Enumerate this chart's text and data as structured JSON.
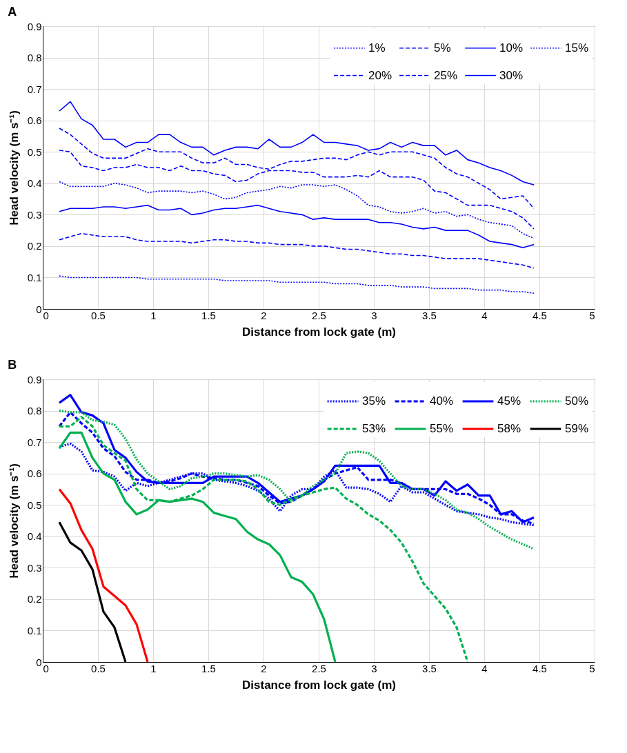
{
  "chart_data": [
    {
      "type": "line",
      "title": "A",
      "xlabel": "Distance from lock gate (m)",
      "ylabel": "Head velocity (m s⁻¹)",
      "xlim": [
        0,
        5
      ],
      "xticks": [
        0,
        0.5,
        1,
        1.5,
        2,
        2.5,
        3,
        3.5,
        4,
        4.5,
        5
      ],
      "ylim": [
        0,
        0.9
      ],
      "yticks": [
        0,
        0.1,
        0.2,
        0.3,
        0.4,
        0.5,
        0.6,
        0.7,
        0.8,
        0.9
      ],
      "grid": true,
      "legend": "top right",
      "x": [
        0.15,
        0.25,
        0.35,
        0.45,
        0.55,
        0.65,
        0.75,
        0.85,
        0.95,
        1.05,
        1.15,
        1.25,
        1.35,
        1.45,
        1.55,
        1.65,
        1.75,
        1.85,
        1.95,
        2.05,
        2.15,
        2.25,
        2.35,
        2.45,
        2.55,
        2.65,
        2.75,
        2.85,
        2.95,
        3.05,
        3.15,
        3.25,
        3.35,
        3.45,
        3.55,
        3.65,
        3.75,
        3.85,
        3.95,
        4.05,
        4.15,
        4.25,
        4.35,
        4.45
      ],
      "series": [
        {
          "name": "1%",
          "color": "#0000ff",
          "line_style": "dotted",
          "values": [
            0.105,
            0.1,
            0.1,
            0.1,
            0.1,
            0.1,
            0.1,
            0.1,
            0.095,
            0.095,
            0.095,
            0.095,
            0.095,
            0.095,
            0.095,
            0.09,
            0.09,
            0.09,
            0.09,
            0.09,
            0.085,
            0.085,
            0.085,
            0.085,
            0.085,
            0.08,
            0.08,
            0.08,
            0.075,
            0.075,
            0.075,
            0.07,
            0.07,
            0.07,
            0.065,
            0.065,
            0.065,
            0.065,
            0.06,
            0.06,
            0.06,
            0.055,
            0.055,
            0.05
          ]
        },
        {
          "name": "5%",
          "color": "#0000ff",
          "line_style": "dashed",
          "values": [
            0.22,
            0.23,
            0.24,
            0.235,
            0.23,
            0.23,
            0.23,
            0.22,
            0.215,
            0.215,
            0.215,
            0.215,
            0.21,
            0.215,
            0.22,
            0.22,
            0.215,
            0.215,
            0.21,
            0.21,
            0.205,
            0.205,
            0.205,
            0.2,
            0.2,
            0.195,
            0.19,
            0.19,
            0.185,
            0.18,
            0.175,
            0.175,
            0.17,
            0.17,
            0.165,
            0.16,
            0.16,
            0.16,
            0.16,
            0.155,
            0.15,
            0.145,
            0.14,
            0.13
          ]
        },
        {
          "name": "10%",
          "color": "#0000ff",
          "line_style": "solid",
          "values": [
            0.31,
            0.32,
            0.32,
            0.32,
            0.325,
            0.325,
            0.32,
            0.325,
            0.33,
            0.315,
            0.315,
            0.32,
            0.3,
            0.305,
            0.315,
            0.32,
            0.32,
            0.325,
            0.33,
            0.32,
            0.31,
            0.305,
            0.3,
            0.285,
            0.29,
            0.285,
            0.285,
            0.285,
            0.285,
            0.275,
            0.275,
            0.27,
            0.26,
            0.255,
            0.26,
            0.25,
            0.25,
            0.25,
            0.235,
            0.215,
            0.21,
            0.205,
            0.195,
            0.205
          ]
        },
        {
          "name": "15%",
          "color": "#0000ff",
          "line_style": "dotted",
          "values": [
            0.405,
            0.39,
            0.39,
            0.39,
            0.39,
            0.4,
            0.395,
            0.385,
            0.37,
            0.375,
            0.375,
            0.375,
            0.37,
            0.375,
            0.365,
            0.35,
            0.355,
            0.37,
            0.375,
            0.38,
            0.39,
            0.385,
            0.395,
            0.395,
            0.39,
            0.395,
            0.38,
            0.36,
            0.33,
            0.325,
            0.31,
            0.305,
            0.31,
            0.32,
            0.305,
            0.31,
            0.295,
            0.3,
            0.285,
            0.275,
            0.27,
            0.265,
            0.24,
            0.225
          ]
        },
        {
          "name": "20%",
          "color": "#0000ff",
          "line_style": "dashed",
          "values": [
            0.505,
            0.5,
            0.455,
            0.45,
            0.44,
            0.45,
            0.45,
            0.46,
            0.45,
            0.45,
            0.44,
            0.455,
            0.44,
            0.44,
            0.43,
            0.425,
            0.405,
            0.41,
            0.43,
            0.44,
            0.44,
            0.44,
            0.435,
            0.435,
            0.42,
            0.42,
            0.42,
            0.425,
            0.42,
            0.44,
            0.42,
            0.42,
            0.42,
            0.41,
            0.375,
            0.37,
            0.35,
            0.33,
            0.33,
            0.33,
            0.32,
            0.31,
            0.29,
            0.255
          ]
        },
        {
          "name": "25%",
          "color": "#0000ff",
          "line_style": "dashed",
          "values": [
            0.575,
            0.555,
            0.525,
            0.495,
            0.48,
            0.48,
            0.48,
            0.495,
            0.51,
            0.5,
            0.5,
            0.5,
            0.48,
            0.465,
            0.465,
            0.48,
            0.46,
            0.46,
            0.45,
            0.445,
            0.46,
            0.47,
            0.47,
            0.475,
            0.48,
            0.48,
            0.475,
            0.49,
            0.5,
            0.49,
            0.5,
            0.5,
            0.5,
            0.49,
            0.48,
            0.45,
            0.43,
            0.42,
            0.4,
            0.38,
            0.35,
            0.355,
            0.36,
            0.32
          ]
        },
        {
          "name": "30%",
          "color": "#0000ff",
          "line_style": "solid",
          "values": [
            0.63,
            0.66,
            0.605,
            0.585,
            0.54,
            0.54,
            0.515,
            0.53,
            0.53,
            0.555,
            0.555,
            0.53,
            0.515,
            0.515,
            0.49,
            0.505,
            0.515,
            0.515,
            0.51,
            0.54,
            0.515,
            0.515,
            0.53,
            0.555,
            0.53,
            0.53,
            0.525,
            0.52,
            0.505,
            0.51,
            0.53,
            0.515,
            0.53,
            0.52,
            0.52,
            0.49,
            0.505,
            0.475,
            0.465,
            0.45,
            0.44,
            0.425,
            0.405,
            0.395
          ]
        }
      ]
    },
    {
      "type": "line",
      "title": "B",
      "xlabel": "Distance from lock gate (m)",
      "ylabel": "Head velocity (m s⁻¹)",
      "xlim": [
        0,
        5
      ],
      "xticks": [
        0,
        0.5,
        1,
        1.5,
        2,
        2.5,
        3,
        3.5,
        4,
        4.5,
        5
      ],
      "ylim": [
        0,
        0.9
      ],
      "yticks": [
        0,
        0.1,
        0.2,
        0.3,
        0.4,
        0.5,
        0.6,
        0.7,
        0.8,
        0.9
      ],
      "grid": true,
      "legend": "top right",
      "x": [
        0.15,
        0.25,
        0.35,
        0.45,
        0.55,
        0.65,
        0.75,
        0.85,
        0.95,
        1.05,
        1.15,
        1.25,
        1.35,
        1.45,
        1.55,
        1.65,
        1.75,
        1.85,
        1.95,
        2.05,
        2.15,
        2.25,
        2.35,
        2.45,
        2.55,
        2.65,
        2.75,
        2.85,
        2.95,
        3.05,
        3.15,
        3.25,
        3.35,
        3.45,
        3.55,
        3.65,
        3.75,
        3.85,
        3.95,
        4.05,
        4.15,
        4.25,
        4.35,
        4.45
      ],
      "series": [
        {
          "name": "35%",
          "color": "#0000ff",
          "line_style": "dotted",
          "values": [
            0.685,
            0.695,
            0.67,
            0.61,
            0.605,
            0.59,
            0.545,
            0.57,
            0.56,
            0.57,
            0.58,
            0.59,
            0.6,
            0.6,
            0.58,
            0.575,
            0.57,
            0.56,
            0.545,
            0.52,
            0.48,
            0.53,
            0.55,
            0.55,
            0.59,
            0.61,
            0.555,
            0.555,
            0.55,
            0.535,
            0.51,
            0.56,
            0.54,
            0.54,
            0.52,
            0.5,
            0.48,
            0.475,
            0.47,
            0.46,
            0.455,
            0.445,
            0.44,
            0.435
          ]
        },
        {
          "name": "40%",
          "color": "#0000ff",
          "line_style": "dashed",
          "values": [
            0.75,
            0.795,
            0.76,
            0.73,
            0.68,
            0.655,
            0.605,
            0.58,
            0.58,
            0.57,
            0.575,
            0.585,
            0.6,
            0.59,
            0.585,
            0.58,
            0.58,
            0.57,
            0.56,
            0.53,
            0.505,
            0.51,
            0.53,
            0.55,
            0.58,
            0.6,
            0.61,
            0.62,
            0.58,
            0.58,
            0.58,
            0.57,
            0.55,
            0.55,
            0.55,
            0.55,
            0.535,
            0.535,
            0.52,
            0.5,
            0.47,
            0.47,
            0.45,
            0.44
          ]
        },
        {
          "name": "45%",
          "color": "#0000ff",
          "line_style": "solid",
          "values": [
            0.825,
            0.85,
            0.795,
            0.785,
            0.76,
            0.675,
            0.65,
            0.605,
            0.575,
            0.57,
            0.57,
            0.57,
            0.57,
            0.57,
            0.59,
            0.59,
            0.59,
            0.59,
            0.57,
            0.54,
            0.51,
            0.52,
            0.53,
            0.55,
            0.575,
            0.625,
            0.625,
            0.625,
            0.625,
            0.625,
            0.57,
            0.57,
            0.55,
            0.55,
            0.53,
            0.575,
            0.545,
            0.565,
            0.53,
            0.53,
            0.47,
            0.48,
            0.445,
            0.46
          ]
        },
        {
          "name": "50%",
          "color": "#00b050",
          "line_style": "dotted",
          "values": [
            0.8,
            0.795,
            0.795,
            0.77,
            0.765,
            0.755,
            0.71,
            0.645,
            0.6,
            0.575,
            0.55,
            0.56,
            0.585,
            0.59,
            0.6,
            0.6,
            0.595,
            0.59,
            0.595,
            0.58,
            0.55,
            0.51,
            0.53,
            0.56,
            0.58,
            0.6,
            0.665,
            0.67,
            0.665,
            0.64,
            0.6,
            0.56,
            0.55,
            0.55,
            0.535,
            0.515,
            0.485,
            0.475,
            0.455,
            0.43,
            0.41,
            0.39,
            0.375,
            0.36
          ]
        },
        {
          "name": "53%",
          "color": "#00b050",
          "line_style": "dashed",
          "x": [
            0.15,
            0.25,
            0.35,
            0.45,
            0.55,
            0.65,
            0.75,
            0.85,
            0.95,
            1.05,
            1.15,
            1.25,
            1.35,
            1.45,
            1.55,
            1.65,
            1.75,
            1.85,
            1.95,
            2.05,
            2.15,
            2.25,
            2.35,
            2.45,
            2.55,
            2.65,
            2.75,
            2.85,
            2.95,
            3.05,
            3.15,
            3.25,
            3.35,
            3.45,
            3.55,
            3.65,
            3.75,
            3.85
          ],
          "values": [
            0.75,
            0.75,
            0.78,
            0.75,
            0.69,
            0.665,
            0.64,
            0.55,
            0.515,
            0.515,
            0.51,
            0.52,
            0.53,
            0.55,
            0.58,
            0.58,
            0.58,
            0.575,
            0.55,
            0.51,
            0.5,
            0.52,
            0.53,
            0.54,
            0.55,
            0.555,
            0.52,
            0.5,
            0.47,
            0.45,
            0.42,
            0.38,
            0.32,
            0.25,
            0.21,
            0.17,
            0.11,
            0
          ]
        },
        {
          "name": "55%",
          "color": "#00b050",
          "line_style": "solid",
          "x": [
            0.15,
            0.25,
            0.35,
            0.45,
            0.55,
            0.65,
            0.75,
            0.85,
            0.95,
            1.05,
            1.15,
            1.25,
            1.35,
            1.45,
            1.55,
            1.65,
            1.75,
            1.85,
            1.95,
            2.05,
            2.15,
            2.25,
            2.35,
            2.45,
            2.55,
            2.65
          ],
          "values": [
            0.68,
            0.73,
            0.73,
            0.65,
            0.6,
            0.58,
            0.51,
            0.47,
            0.485,
            0.515,
            0.51,
            0.515,
            0.52,
            0.51,
            0.475,
            0.465,
            0.455,
            0.415,
            0.39,
            0.375,
            0.34,
            0.27,
            0.255,
            0.215,
            0.135,
            0
          ]
        },
        {
          "name": "58%",
          "color": "#ff0000",
          "line_style": "solid",
          "x": [
            0.15,
            0.25,
            0.35,
            0.45,
            0.55,
            0.65,
            0.75,
            0.85,
            0.95
          ],
          "values": [
            0.55,
            0.505,
            0.42,
            0.36,
            0.24,
            0.21,
            0.18,
            0.12,
            0
          ]
        },
        {
          "name": "59%",
          "color": "#000000",
          "line_style": "solid",
          "x": [
            0.15,
            0.25,
            0.35,
            0.45,
            0.55,
            0.65,
            0.75
          ],
          "values": [
            0.445,
            0.38,
            0.355,
            0.295,
            0.16,
            0.11,
            0
          ]
        }
      ]
    }
  ]
}
